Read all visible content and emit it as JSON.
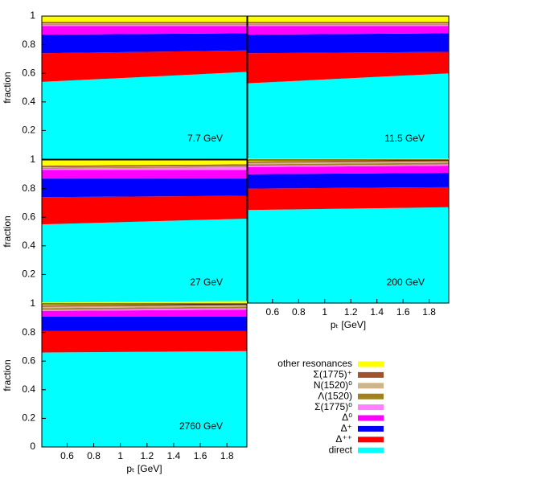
{
  "chart_data": [
    {
      "type": "area",
      "annotation": "7.7 GeV",
      "ylabel": "fraction",
      "x": [
        0.41,
        1.95
      ],
      "xlim": [
        0.41,
        1.95
      ],
      "ylim": [
        0,
        1
      ],
      "yticks": [
        0.2,
        0.4,
        0.6,
        0.8,
        1
      ],
      "series": [
        {
          "name": "direct",
          "color": "#00ffff",
          "values": [
            0.54,
            0.61
          ]
        },
        {
          "name": "Δ⁺⁺",
          "color": "#ff0000",
          "values": [
            0.2,
            0.15
          ]
        },
        {
          "name": "Δ⁺",
          "color": "#0000ff",
          "values": [
            0.13,
            0.12
          ]
        },
        {
          "name": "Δ⁰",
          "color": "#ff00ff",
          "values": [
            0.06,
            0.05
          ]
        },
        {
          "name": "Σ(1775)⁰",
          "color": "#ff80ff",
          "values": [
            0.01,
            0.01
          ]
        },
        {
          "name": "Λ(1520)",
          "color": "#a08020",
          "values": [
            0.005,
            0.005
          ]
        },
        {
          "name": "N(1520)⁰",
          "color": "#d2b48c",
          "values": [
            0.005,
            0.005
          ]
        },
        {
          "name": "Σ(1775)⁺",
          "color": "#a0522d",
          "values": [
            0.01,
            0.01
          ]
        },
        {
          "name": "other resonances",
          "color": "#ffff00",
          "values": [
            0.04,
            0.04
          ]
        }
      ]
    },
    {
      "type": "area",
      "annotation": "11.5 GeV",
      "x": [
        0.41,
        1.95
      ],
      "xlim": [
        0.41,
        1.95
      ],
      "ylim": [
        0,
        1
      ],
      "series": [
        {
          "color": "#00ffff",
          "values": [
            0.53,
            0.6
          ]
        },
        {
          "color": "#ff0000",
          "values": [
            0.21,
            0.15
          ]
        },
        {
          "color": "#0000ff",
          "values": [
            0.13,
            0.13
          ]
        },
        {
          "color": "#ff00ff",
          "values": [
            0.06,
            0.05
          ]
        },
        {
          "color": "#ff80ff",
          "values": [
            0.01,
            0.01
          ]
        },
        {
          "color": "#a08020",
          "values": [
            0.005,
            0.005
          ]
        },
        {
          "color": "#d2b48c",
          "values": [
            0.005,
            0.005
          ]
        },
        {
          "color": "#a0522d",
          "values": [
            0.01,
            0.01
          ]
        },
        {
          "color": "#ffff00",
          "values": [
            0.04,
            0.04
          ]
        }
      ]
    },
    {
      "type": "area",
      "annotation": "27 GeV",
      "ylabel": "fraction",
      "x": [
        0.41,
        1.95
      ],
      "xlim": [
        0.41,
        1.95
      ],
      "ylim": [
        0,
        1
      ],
      "yticks": [
        0.2,
        0.4,
        0.6,
        0.8,
        1
      ],
      "series": [
        {
          "color": "#00ffff",
          "values": [
            0.55,
            0.59
          ]
        },
        {
          "color": "#ff0000",
          "values": [
            0.19,
            0.16
          ]
        },
        {
          "color": "#0000ff",
          "values": [
            0.13,
            0.12
          ]
        },
        {
          "color": "#ff00ff",
          "values": [
            0.06,
            0.06
          ]
        },
        {
          "color": "#ff80ff",
          "values": [
            0.01,
            0.02
          ]
        },
        {
          "color": "#a08020",
          "values": [
            0.005,
            0.005
          ]
        },
        {
          "color": "#d2b48c",
          "values": [
            0.005,
            0.005
          ]
        },
        {
          "color": "#a0522d",
          "values": [
            0.01,
            0.01
          ]
        },
        {
          "color": "#ffff00",
          "values": [
            0.04,
            0.03
          ]
        }
      ]
    },
    {
      "type": "area",
      "annotation": "200 GeV",
      "xlabel": "pₜ [GeV]",
      "x": [
        0.41,
        1.95
      ],
      "xlim": [
        0.41,
        1.95
      ],
      "ylim": [
        0,
        1
      ],
      "xticks": [
        0.6,
        0.8,
        1,
        1.2,
        1.4,
        1.6,
        1.8
      ],
      "series": [
        {
          "color": "#00ffff",
          "values": [
            0.65,
            0.67
          ]
        },
        {
          "color": "#ff0000",
          "values": [
            0.15,
            0.14
          ]
        },
        {
          "color": "#0000ff",
          "values": [
            0.1,
            0.1
          ]
        },
        {
          "color": "#ff00ff",
          "values": [
            0.05,
            0.05
          ]
        },
        {
          "color": "#ff80ff",
          "values": [
            0.01,
            0.01
          ]
        },
        {
          "color": "#a08020",
          "values": [
            0.01,
            0.01
          ]
        },
        {
          "color": "#d2b48c",
          "values": [
            0.01,
            0.01
          ]
        },
        {
          "color": "#a0522d",
          "values": [
            0.01,
            0.01
          ]
        },
        {
          "color": "#ffff00",
          "values": [
            0.02,
            0.01
          ]
        }
      ]
    },
    {
      "type": "area",
      "annotation": "2760 GeV",
      "ylabel": "fraction",
      "xlabel": "pₜ [GeV]",
      "x": [
        0.41,
        1.95
      ],
      "xlim": [
        0.41,
        1.95
      ],
      "ylim": [
        0,
        1
      ],
      "yticks": [
        0,
        0.2,
        0.4,
        0.6,
        0.8,
        1
      ],
      "xticks": [
        0.6,
        0.8,
        1,
        1.2,
        1.4,
        1.6,
        1.8
      ],
      "series": [
        {
          "color": "#00ffff",
          "values": [
            0.66,
            0.67
          ]
        },
        {
          "color": "#ff0000",
          "values": [
            0.15,
            0.14
          ]
        },
        {
          "color": "#0000ff",
          "values": [
            0.1,
            0.1
          ]
        },
        {
          "color": "#ff00ff",
          "values": [
            0.04,
            0.05
          ]
        },
        {
          "color": "#ff80ff",
          "values": [
            0.01,
            0.01
          ]
        },
        {
          "color": "#a08020",
          "values": [
            0.01,
            0.01
          ]
        },
        {
          "color": "#d2b48c",
          "values": [
            0.01,
            0.01
          ]
        },
        {
          "color": "#a0522d",
          "values": [
            0.01,
            0.01
          ]
        },
        {
          "color": "#ffff00",
          "values": [
            0.02,
            0.02
          ]
        }
      ]
    }
  ]
}
